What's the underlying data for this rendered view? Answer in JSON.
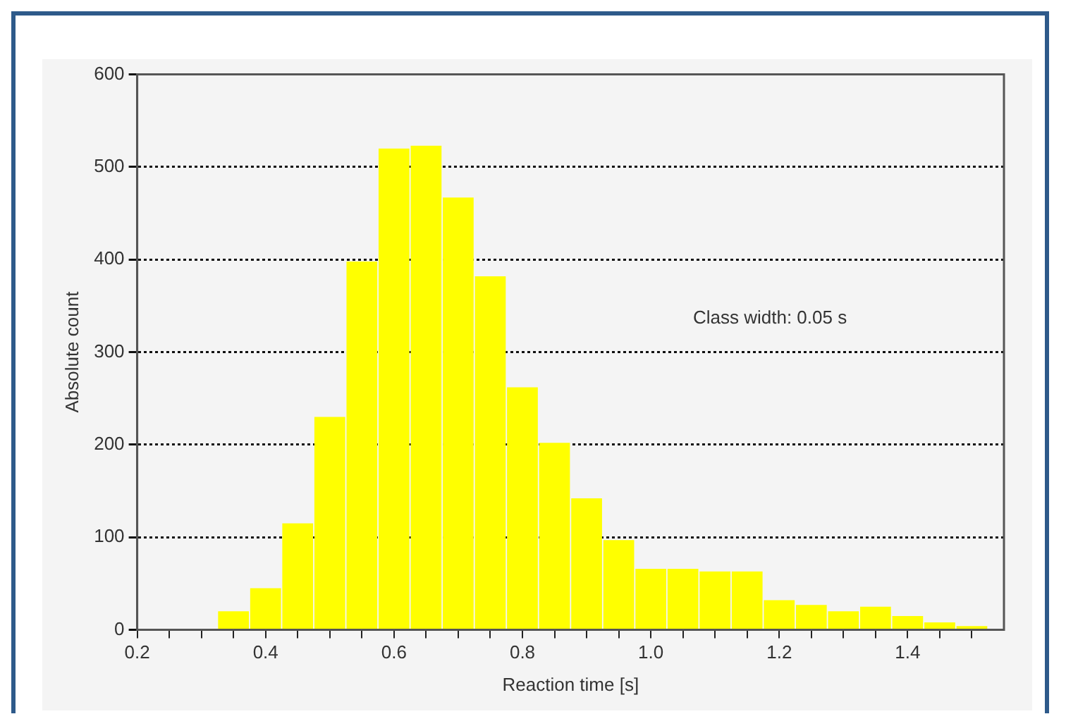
{
  "chart_data": {
    "type": "histogram",
    "xlabel": "Reaction time [s]",
    "ylabel": "Absolute count",
    "annotations": [
      "Class width: 0.05 s"
    ],
    "bins": [
      0.325,
      0.375,
      0.425,
      0.475,
      0.525,
      0.575,
      0.625,
      0.675,
      0.725,
      0.775,
      0.825,
      0.875,
      0.925,
      0.975,
      1.025,
      1.075,
      1.125,
      1.175,
      1.225,
      1.275,
      1.325,
      1.375,
      1.425,
      1.475,
      1.525
    ],
    "values": [
      20,
      45,
      115,
      230,
      398,
      520,
      523,
      467,
      382,
      262,
      202,
      142,
      97,
      66,
      66,
      63,
      63,
      32,
      27,
      20,
      25,
      15,
      8,
      4
    ],
    "color": "#ffff00",
    "xlim": [
      0.2,
      1.55
    ],
    "xticks": [
      {
        "value": 0.2,
        "label": "0.2"
      },
      {
        "value": 0.25,
        "label": null
      },
      {
        "value": 0.3,
        "label": null
      },
      {
        "value": 0.35,
        "label": null
      },
      {
        "value": 0.4,
        "label": "0.4"
      },
      {
        "value": 0.45,
        "label": null
      },
      {
        "value": 0.5,
        "label": null
      },
      {
        "value": 0.55,
        "label": null
      },
      {
        "value": 0.6,
        "label": "0.6"
      },
      {
        "value": 0.65,
        "label": null
      },
      {
        "value": 0.7,
        "label": null
      },
      {
        "value": 0.75,
        "label": null
      },
      {
        "value": 0.8,
        "label": "0.8"
      },
      {
        "value": 0.85,
        "label": null
      },
      {
        "value": 0.9,
        "label": null
      },
      {
        "value": 0.95,
        "label": null
      },
      {
        "value": 1.0,
        "label": "1.0"
      },
      {
        "value": 1.05,
        "label": null
      },
      {
        "value": 1.1,
        "label": null
      },
      {
        "value": 1.15,
        "label": null
      },
      {
        "value": 1.2,
        "label": "1.2"
      },
      {
        "value": 1.25,
        "label": null
      },
      {
        "value": 1.3,
        "label": null
      },
      {
        "value": 1.35,
        "label": null
      },
      {
        "value": 1.4,
        "label": "1.4"
      },
      {
        "value": 1.45,
        "label": null
      },
      {
        "value": 1.5,
        "label": null
      }
    ],
    "ylim": [
      0,
      600
    ],
    "yticks": [
      0,
      100,
      200,
      300,
      400,
      500,
      600
    ],
    "grid": "y",
    "legend": false
  }
}
